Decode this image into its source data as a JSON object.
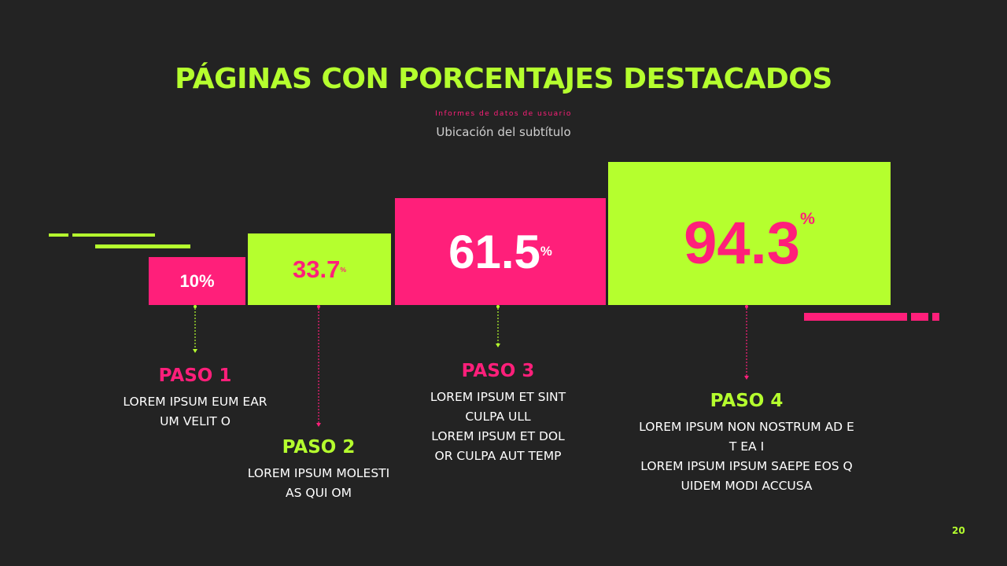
{
  "header": {
    "title": "PÁGINAS CON PORCENTAJES DESTACADOS",
    "kicker": "Informes de datos de usuario",
    "subtitle": "Ubicación del subtítulo"
  },
  "steps": [
    {
      "value": "10%",
      "label": "PASO 1",
      "lines": [
        "LOREM IPSUM EUM EAR",
        "UM VELIT O"
      ]
    },
    {
      "value": "33.7",
      "unit": "%",
      "label": "PASO 2",
      "lines": [
        "LOREM IPSUM MOLESTI",
        "AS QUI OM"
      ]
    },
    {
      "value": "61.5",
      "unit": "%",
      "label": "PASO 3",
      "lines": [
        "LOREM IPSUM ET SINT",
        "CULPA ULL",
        "LOREM IPSUM ET DOL",
        "OR CULPA AUT TEMP"
      ]
    },
    {
      "value": "94.3",
      "unit": "%",
      "label": "PASO 4",
      "lines": [
        "LOREM IPSUM NON NOSTRUM AD E",
        "T EA I",
        "LOREM IPSUM IPSUM SAEPE EOS Q",
        "UIDEM MODI ACCUSA"
      ]
    }
  ],
  "footer": {
    "page_number": "20"
  }
}
